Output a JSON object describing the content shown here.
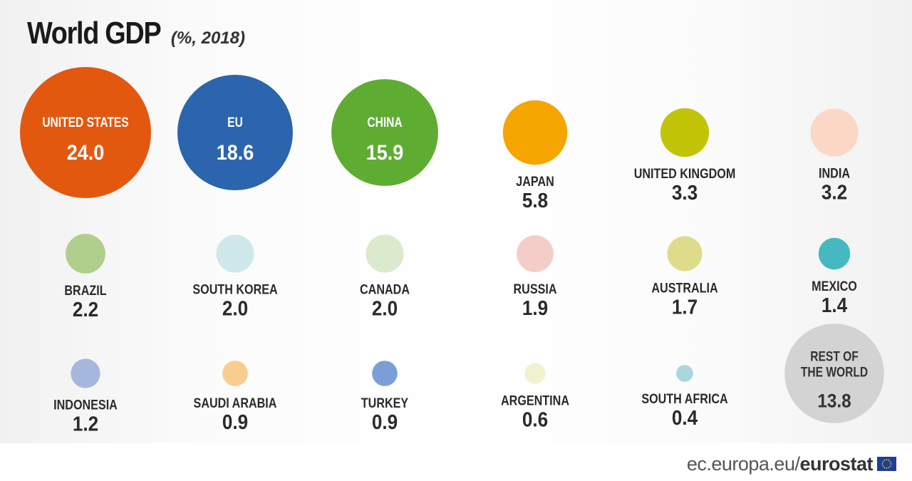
{
  "title": "World GDP",
  "subtitle": "(%, 2018)",
  "footer": {
    "site": "ec.europa.eu/",
    "brand": "eurostat"
  },
  "colors": {
    "label_on_bubble": "#ffffff",
    "label_below": "#2a2a2a",
    "rest_label": "#333333"
  },
  "chart_data": {
    "type": "bubble",
    "unit": "%",
    "year": 2018,
    "items": [
      {
        "country": "UNITED STATES",
        "value": 24.0,
        "color": "#e2580f",
        "label_inside": true
      },
      {
        "country": "EU",
        "value": 18.6,
        "color": "#2a65ae",
        "label_inside": true
      },
      {
        "country": "CHINA",
        "value": 15.9,
        "color": "#5fac32",
        "label_inside": true
      },
      {
        "country": "JAPAN",
        "value": 5.8,
        "color": "#f5a500",
        "label_inside": false
      },
      {
        "country": "UNITED KINGDOM",
        "value": 3.3,
        "color": "#c2c408",
        "label_inside": false
      },
      {
        "country": "INDIA",
        "value": 3.2,
        "color": "#fbd8c6",
        "label_inside": false
      },
      {
        "country": "BRAZIL",
        "value": 2.2,
        "color": "#b1cf8c",
        "label_inside": false
      },
      {
        "country": "SOUTH KOREA",
        "value": 2.0,
        "color": "#cfe8ec",
        "label_inside": false
      },
      {
        "country": "CANADA",
        "value": 2.0,
        "color": "#dbeacc",
        "label_inside": false
      },
      {
        "country": "RUSSIA",
        "value": 1.9,
        "color": "#f5cdc8",
        "label_inside": false
      },
      {
        "country": "AUSTRALIA",
        "value": 1.7,
        "color": "#dedc8a",
        "label_inside": false
      },
      {
        "country": "MEXICO",
        "value": 1.4,
        "color": "#46b8c0",
        "label_inside": false
      },
      {
        "country": "INDONESIA",
        "value": 1.2,
        "color": "#a5b7dc",
        "label_inside": false
      },
      {
        "country": "SAUDI ARABIA",
        "value": 0.9,
        "color": "#f8cd8e",
        "label_inside": false
      },
      {
        "country": "TURKEY",
        "value": 0.9,
        "color": "#7c9ed8",
        "label_inside": false
      },
      {
        "country": "ARGENTINA",
        "value": 0.6,
        "color": "#f0f2d0",
        "label_inside": false
      },
      {
        "country": "SOUTH AFRICA",
        "value": 0.4,
        "color": "#a8d8dc",
        "label_inside": false
      },
      {
        "country": "REST OF THE WORLD",
        "value": 13.8,
        "color": "#d3d3d3",
        "label_inside": true
      }
    ]
  }
}
